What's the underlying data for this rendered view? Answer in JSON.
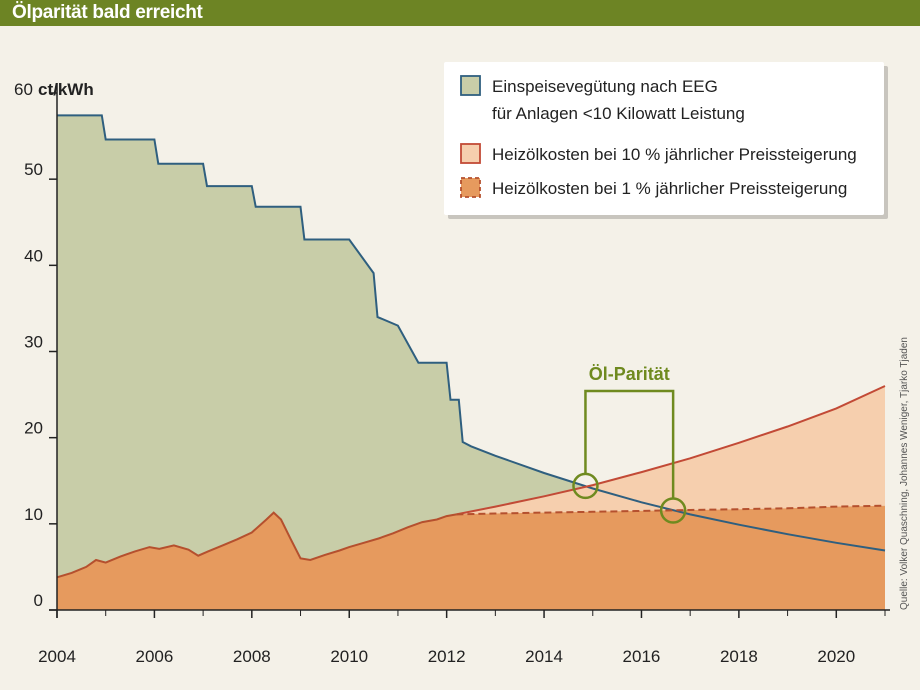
{
  "header": {
    "title": "Ölparität bald erreicht"
  },
  "chart_data": {
    "type": "area",
    "title": "Ölparität bald erreicht",
    "ylabel_value": "60",
    "ylabel_unit": "ct/kWh",
    "ylim": [
      0,
      60
    ],
    "xlim": [
      2004,
      2021
    ],
    "y_ticks": [
      "0",
      "10",
      "20",
      "30",
      "40",
      "50"
    ],
    "x_ticks": [
      "2004",
      "2006",
      "2008",
      "2010",
      "2012",
      "2014",
      "2016",
      "2018",
      "2020"
    ],
    "grid": false,
    "legend_position": "top-right",
    "legend": [
      {
        "line1": "Einspeisevegütung nach EEG",
        "line2": "für Anlagen <10 Kilowatt Leistung"
      },
      {
        "line1": "Heizölkosten bei 10 % jährlicher Preissteigerung"
      },
      {
        "line1": "Heizölkosten bei 1 % jährlicher Preissteigerung"
      }
    ],
    "annotation": "Öl-Parität",
    "source": "Quelle: Volker Quaschning, Johannes Weniger, Tjarko Tjaden",
    "colors": {
      "eeg_fill": "#c8cda8",
      "eeg_line": "#2f5f7f",
      "oil_fill": "#e69a5e",
      "oil_line": "#b5502e",
      "oil10_fill": "#f6cfae",
      "oil10_line": "#c24a36",
      "oil1_line": "#b5502e",
      "marker": "#6f8a1f"
    },
    "series": [
      {
        "name": "Einspeisevegütung nach EEG",
        "x": [
          2004,
          2004.92,
          2005.0,
          2006.0,
          2006.08,
          2007.0,
          2007.08,
          2008.0,
          2008.08,
          2009.0,
          2009.08,
          2010.0,
          2010.5,
          2010.58,
          2011.0,
          2011.42,
          2011.5,
          2012.0,
          2012.08,
          2012.25,
          2012.33,
          2012.5,
          2013,
          2014,
          2015,
          2016,
          2017,
          2018,
          2019,
          2020,
          2021
        ],
        "y": [
          57.4,
          57.4,
          54.6,
          54.6,
          51.8,
          51.8,
          49.2,
          49.2,
          46.8,
          46.8,
          43.0,
          43.0,
          39.1,
          34.0,
          33.0,
          28.7,
          28.7,
          28.7,
          24.4,
          24.4,
          19.5,
          19.0,
          17.9,
          15.9,
          14.1,
          12.5,
          11.1,
          9.9,
          8.8,
          7.8,
          6.9
        ]
      },
      {
        "name": "Heizölkosten (historisch)",
        "x": [
          2004,
          2004.3,
          2004.6,
          2004.8,
          2005.0,
          2005.3,
          2005.6,
          2005.9,
          2006.1,
          2006.4,
          2006.7,
          2006.9,
          2007.1,
          2007.4,
          2007.7,
          2008.0,
          2008.3,
          2008.45,
          2008.6,
          2008.8,
          2009.0,
          2009.2,
          2009.5,
          2009.8,
          2010.0,
          2010.3,
          2010.6,
          2010.9,
          2011.2,
          2011.5,
          2011.8,
          2012.0,
          2012.2
        ],
        "y": [
          3.8,
          4.3,
          5.0,
          5.8,
          5.5,
          6.2,
          6.8,
          7.3,
          7.1,
          7.5,
          7.0,
          6.3,
          6.8,
          7.5,
          8.2,
          9.0,
          10.5,
          11.3,
          10.5,
          8.2,
          6.0,
          5.8,
          6.4,
          6.9,
          7.3,
          7.8,
          8.3,
          8.9,
          9.6,
          10.2,
          10.5,
          10.9,
          11.1
        ]
      },
      {
        "name": "Heizölkosten bei 10 % jährlicher Preissteigerung",
        "x": [
          2012.2,
          2013,
          2014,
          2015,
          2016,
          2017,
          2018,
          2019,
          2020,
          2021
        ],
        "y": [
          11.1,
          12.0,
          13.2,
          14.5,
          16.0,
          17.6,
          19.4,
          21.3,
          23.4,
          26.0
        ]
      },
      {
        "name": "Heizölkosten bei 1 % jährlicher Preissteigerung",
        "x": [
          2012.2,
          2013,
          2014,
          2015,
          2016,
          2017,
          2018,
          2019,
          2020,
          2021
        ],
        "y": [
          11.1,
          11.2,
          11.3,
          11.4,
          11.5,
          11.6,
          11.7,
          11.8,
          12.0,
          12.1
        ]
      }
    ],
    "parity_points": [
      {
        "x": 2014.85,
        "y": 14.4
      },
      {
        "x": 2016.65,
        "y": 11.55
      }
    ]
  }
}
